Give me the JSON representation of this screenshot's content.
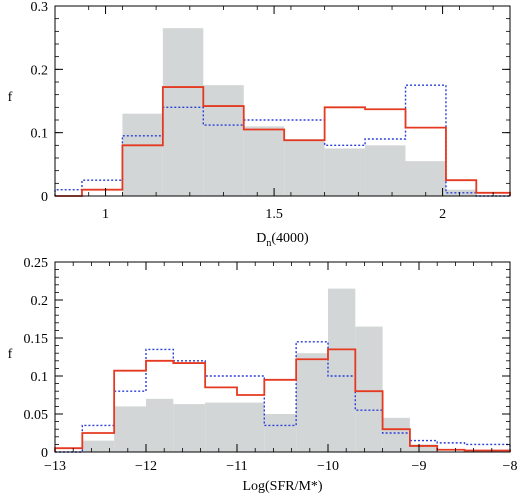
{
  "figure": {
    "panels": [
      "top",
      "bottom"
    ]
  },
  "chart_data": [
    {
      "type": "bar",
      "xlabel": "D",
      "xlabel_sub": "n",
      "xlabel_rest": "(4000)",
      "ylabel": "f",
      "xlim": [
        0.85,
        2.2
      ],
      "ylim": [
        0,
        0.3
      ],
      "xticks": [
        1,
        1.5,
        2
      ],
      "xtick_labels": [
        "1",
        "1.5",
        "2"
      ],
      "yticks": [
        0,
        0.1,
        0.2,
        0.3
      ],
      "ytick_labels": [
        "0",
        "0.1",
        "0.2",
        "0.3"
      ],
      "bin_edges": [
        0.85,
        0.93,
        1.05,
        1.17,
        1.29,
        1.41,
        1.53,
        1.65,
        1.77,
        1.89,
        2.01,
        2.1,
        2.2
      ],
      "series": [
        {
          "style": "filled",
          "color": "#d3d6d6",
          "values": [
            0.0,
            0.0,
            0.13,
            0.265,
            0.175,
            0.11,
            0.09,
            0.075,
            0.08,
            0.055,
            0.01,
            0.0
          ]
        },
        {
          "style": "dotted",
          "color": "#2a3fd8",
          "values": [
            0.01,
            0.025,
            0.095,
            0.14,
            0.112,
            0.12,
            0.12,
            0.08,
            0.09,
            0.175,
            0.005,
            0.0
          ]
        },
        {
          "style": "solid",
          "color": "#e53a22",
          "values": [
            0.0,
            0.01,
            0.08,
            0.172,
            0.142,
            0.105,
            0.088,
            0.14,
            0.137,
            0.108,
            0.025,
            0.005
          ]
        }
      ]
    },
    {
      "type": "bar",
      "xlabel": "Log(SFR/M*)",
      "ylabel": "f",
      "xlim": [
        -13,
        -8
      ],
      "ylim": [
        0,
        0.25
      ],
      "xticks": [
        -13,
        -12,
        -11,
        -10,
        -9,
        -8
      ],
      "xtick_labels": [
        "−13",
        "−12",
        "−11",
        "−10",
        "−9",
        "−8"
      ],
      "yticks": [
        0,
        0.05,
        0.1,
        0.15,
        0.2,
        0.25
      ],
      "ytick_labels": [
        "0",
        "0.05",
        "0.1",
        "0.15",
        "0.2",
        "0.25"
      ],
      "bin_edges": [
        -13.0,
        -12.7,
        -12.35,
        -12.0,
        -11.7,
        -11.35,
        -11.0,
        -10.7,
        -10.35,
        -10.0,
        -9.7,
        -9.4,
        -9.1,
        -8.8,
        -8.5,
        -8.0
      ],
      "series": [
        {
          "style": "filled",
          "color": "#d3d6d6",
          "values": [
            0.0,
            0.015,
            0.06,
            0.07,
            0.063,
            0.065,
            0.065,
            0.05,
            0.13,
            0.215,
            0.165,
            0.045,
            0.01,
            0.0,
            0.0
          ]
        },
        {
          "style": "dotted",
          "color": "#2a3fd8",
          "values": [
            0.0,
            0.035,
            0.08,
            0.135,
            0.12,
            0.1,
            0.1,
            0.035,
            0.145,
            0.1,
            0.055,
            0.025,
            0.015,
            0.012,
            0.01
          ]
        },
        {
          "style": "solid",
          "color": "#e53a22",
          "values": [
            0.005,
            0.025,
            0.107,
            0.12,
            0.117,
            0.085,
            0.075,
            0.095,
            0.122,
            0.135,
            0.08,
            0.03,
            0.008,
            0.003,
            0.002
          ]
        }
      ]
    }
  ]
}
